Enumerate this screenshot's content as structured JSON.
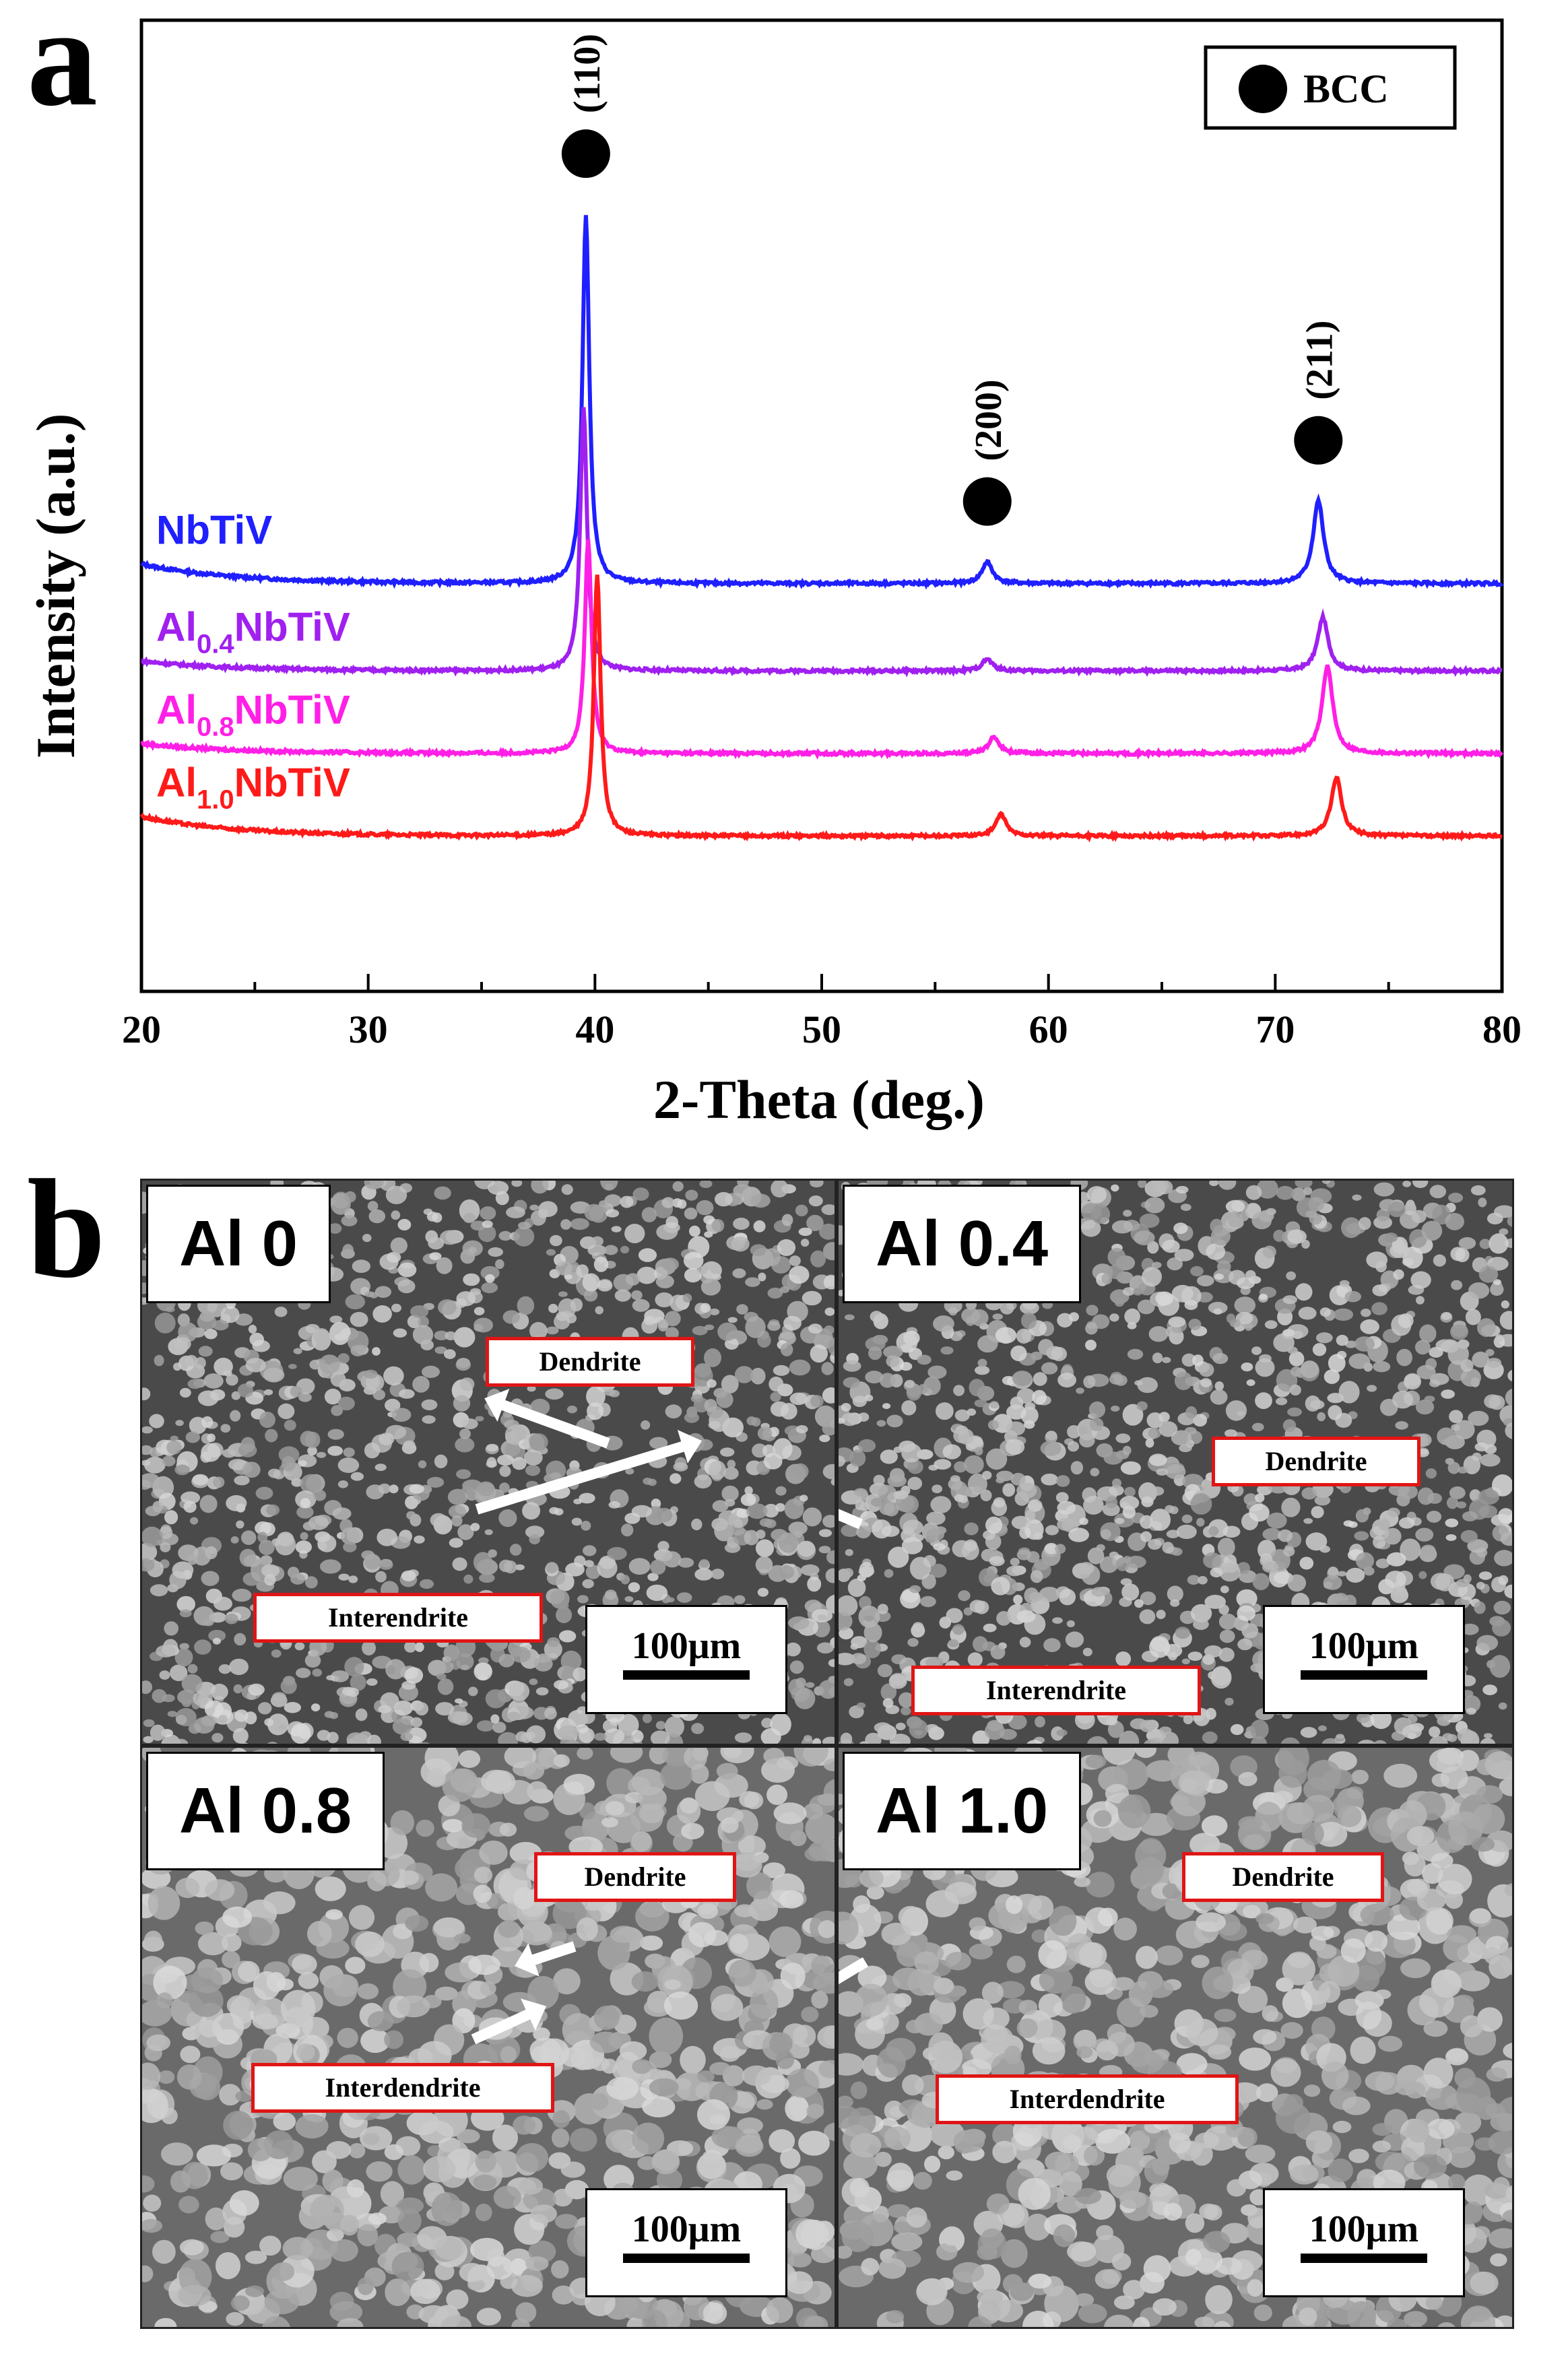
{
  "panels": {
    "a": {
      "letter": "a"
    },
    "b": {
      "letter": "b"
    }
  },
  "chart_data": {
    "type": "line",
    "title": "",
    "xlabel": "2-Theta (deg.)",
    "ylabel": "Intensity (a.u.)",
    "xlim": [
      20,
      80
    ],
    "xticks": [
      20,
      30,
      40,
      50,
      60,
      70,
      80
    ],
    "yticks": false,
    "grid": false,
    "legend": {
      "marker": "filled-circle",
      "label": "BCC",
      "placement": "top-right"
    },
    "peak_annotations": [
      {
        "label": "(110)",
        "x": 39.6
      },
      {
        "label": "(200)",
        "x": 57.3
      },
      {
        "label": "(211)",
        "x": 71.9
      }
    ],
    "series": [
      {
        "name": "NbTiV",
        "name_base": "NbTiV",
        "name_sub": "",
        "name_prefix": "",
        "color": "#1f1fff",
        "baseline": 0.42,
        "baseline_drop": 0.02,
        "peaks": [
          {
            "x": 39.6,
            "h": 0.38
          },
          {
            "x": 57.3,
            "h": 0.022
          },
          {
            "x": 71.9,
            "h": 0.085
          }
        ]
      },
      {
        "name": "Al0.4NbTiV",
        "name_prefix": "Al",
        "name_sub": "0.4",
        "name_base": "NbTiV",
        "color": "#a020f0",
        "baseline": 0.33,
        "baseline_drop": 0.01,
        "peaks": [
          {
            "x": 39.5,
            "h": 0.27
          },
          {
            "x": 57.3,
            "h": 0.012
          },
          {
            "x": 72.1,
            "h": 0.055
          }
        ]
      },
      {
        "name": "Al0.8NbTiV",
        "name_prefix": "Al",
        "name_sub": "0.8",
        "name_base": "NbTiV",
        "color": "#ff1fe6",
        "baseline": 0.245,
        "baseline_drop": 0.01,
        "peaks": [
          {
            "x": 39.7,
            "h": 0.22
          },
          {
            "x": 57.6,
            "h": 0.017
          },
          {
            "x": 72.3,
            "h": 0.09
          }
        ]
      },
      {
        "name": "Al1.0NbTiV",
        "name_prefix": "Al",
        "name_sub": "1.0",
        "name_base": "NbTiV",
        "color": "#ff1a1a",
        "baseline": 0.16,
        "baseline_drop": 0.02,
        "peaks": [
          {
            "x": 40.1,
            "h": 0.27
          },
          {
            "x": 57.9,
            "h": 0.022
          },
          {
            "x": 72.7,
            "h": 0.06
          }
        ]
      }
    ]
  },
  "micrographs": [
    {
      "label": "Al 0",
      "dendrite": "Dendrite",
      "interdendrite": "Interendrite",
      "scale": "100μm"
    },
    {
      "label": "Al 0.4",
      "dendrite": "Dendrite",
      "interdendrite": "Interendrite",
      "scale": "100μm"
    },
    {
      "label": "Al 0.8",
      "dendrite": "Dendrite",
      "interdendrite": "Interdendrite",
      "scale": "100μm"
    },
    {
      "label": "Al 1.0",
      "dendrite": "Dendrite",
      "interdendrite": "Interdendrite",
      "scale": "100μm"
    }
  ],
  "colors": {
    "callout_border": "#e01515",
    "axis": "#000000",
    "sem_dark": "#3a3a3a",
    "sem_light": "#c8c8c8"
  }
}
